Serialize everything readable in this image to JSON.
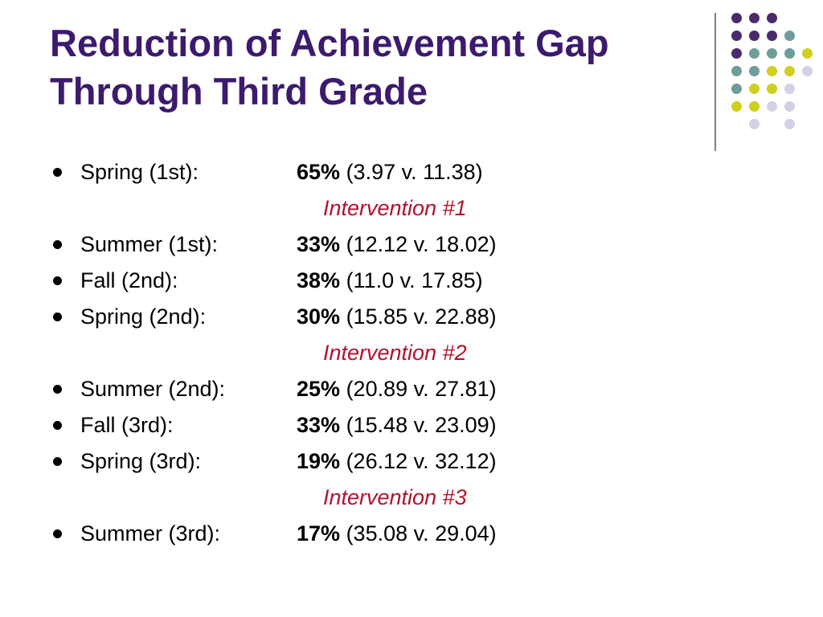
{
  "slide": {
    "title_line1": "Reduction of Achievement Gap",
    "title_line2": "Through Third Grade"
  },
  "decoration": {
    "dot_colors": {
      "purple": "#4b2a6c",
      "teal": "#6e9c9a",
      "yellow": "#cfcf1e",
      "lavender": "#d2d2e6"
    },
    "divider_color": "#7f7f7f"
  },
  "colors": {
    "title": "#3c1a6e",
    "intervention": "#b1122e"
  },
  "items": [
    {
      "type": "bullet",
      "label": "Spring (1st):",
      "percent": "65%",
      "detail": "(3.97 v. 11.38)"
    },
    {
      "type": "intervention",
      "text": "Intervention #1"
    },
    {
      "type": "bullet",
      "label": "Summer (1st):",
      "percent": "33%",
      "detail": "(12.12 v. 18.02)"
    },
    {
      "type": "bullet",
      "label": "Fall (2nd):",
      "percent": "38%",
      "detail": "(11.0 v. 17.85)"
    },
    {
      "type": "bullet",
      "label": "Spring (2nd):",
      "percent": "30%",
      "detail": "(15.85 v. 22.88)"
    },
    {
      "type": "intervention",
      "text": "Intervention #2"
    },
    {
      "type": "bullet",
      "label": "Summer (2nd):",
      "percent": "25%",
      "detail": "(20.89 v. 27.81)"
    },
    {
      "type": "bullet",
      "label": "Fall (3rd):",
      "percent": "33%",
      "detail": "(15.48 v. 23.09)"
    },
    {
      "type": "bullet",
      "label": "Spring (3rd):",
      "percent": "19%",
      "detail": "(26.12 v. 32.12)"
    },
    {
      "type": "intervention",
      "text": "Intervention #3"
    },
    {
      "type": "bullet",
      "label": "Summer (3rd):",
      "percent": "17%",
      "detail": "(35.08 v. 29.04)"
    }
  ]
}
